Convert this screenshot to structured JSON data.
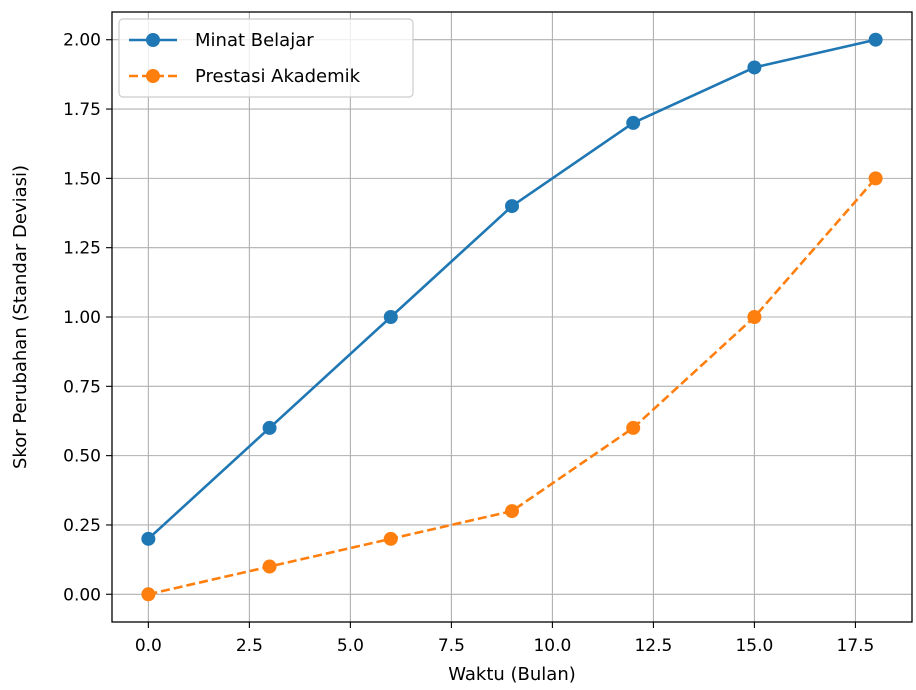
{
  "chart_data": {
    "type": "line",
    "title": "",
    "xlabel": "Waktu (Bulan)",
    "ylabel": "Skor Perubahan (Standar Deviasi)",
    "x": [
      0,
      3,
      6,
      9,
      12,
      15,
      18
    ],
    "xlim": [
      -0.9,
      18.9
    ],
    "ylim": [
      -0.1,
      2.1
    ],
    "xticks": [
      0.0,
      2.5,
      5.0,
      7.5,
      10.0,
      12.5,
      15.0,
      17.5
    ],
    "xtick_labels": [
      "0.0",
      "2.5",
      "5.0",
      "7.5",
      "10.0",
      "12.5",
      "15.0",
      "17.5"
    ],
    "yticks": [
      0.0,
      0.25,
      0.5,
      0.75,
      1.0,
      1.25,
      1.5,
      1.75,
      2.0
    ],
    "ytick_labels": [
      "0.00",
      "0.25",
      "0.50",
      "0.75",
      "1.00",
      "1.25",
      "1.50",
      "1.75",
      "2.00"
    ],
    "grid": true,
    "legend_position": "top-left",
    "series": [
      {
        "name": "Minat Belajar",
        "values": [
          0.2,
          0.6,
          1.0,
          1.4,
          1.7,
          1.9,
          2.0
        ],
        "color": "#1f77b4",
        "line_style": "solid",
        "marker": "circle"
      },
      {
        "name": "Prestasi Akademik",
        "values": [
          0.0,
          0.1,
          0.2,
          0.3,
          0.6,
          1.0,
          1.5
        ],
        "color": "#ff7f0e",
        "line_style": "dashed",
        "marker": "circle"
      }
    ]
  }
}
